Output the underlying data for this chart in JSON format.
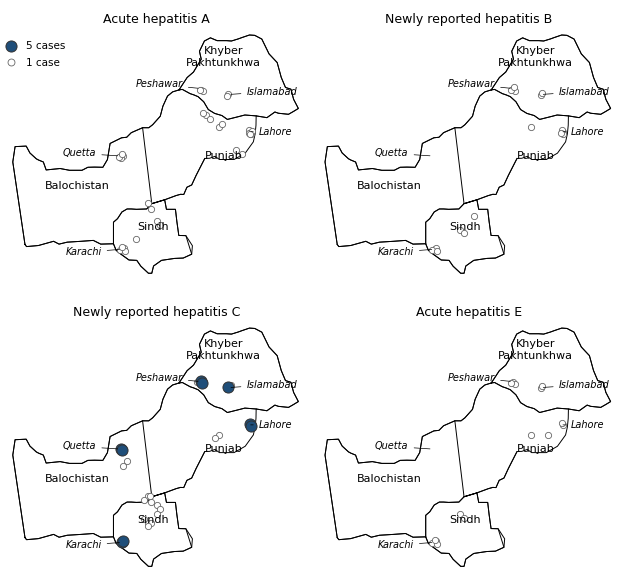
{
  "titles": [
    "Acute hepatitis A",
    "Newly reported hepatitis B",
    "Newly reported hepatitis C",
    "Acute hepatitis E"
  ],
  "legend_5cases_color": "#1f4e79",
  "legend_1case_color": "#ffffff",
  "legend_edge_color": "#666666",
  "xlim": [
    60.5,
    77.5
  ],
  "ylim": [
    23.2,
    37.5
  ],
  "cases_A_small": [
    [
      71.55,
      33.95
    ],
    [
      71.65,
      33.88
    ],
    [
      71.45,
      33.92
    ],
    [
      73.08,
      33.72
    ],
    [
      73.0,
      33.62
    ],
    [
      74.32,
      31.57
    ],
    [
      74.25,
      31.67
    ],
    [
      74.38,
      31.47
    ],
    [
      74.22,
      31.52
    ],
    [
      74.42,
      31.62
    ],
    [
      74.3,
      31.42
    ],
    [
      66.97,
      30.2
    ],
    [
      67.12,
      30.22
    ],
    [
      67.02,
      30.07
    ],
    [
      66.87,
      30.12
    ],
    [
      67.07,
      30.32
    ],
    [
      67.07,
      24.92
    ],
    [
      67.17,
      24.97
    ],
    [
      66.92,
      24.87
    ],
    [
      67.22,
      24.82
    ],
    [
      67.07,
      25.07
    ],
    [
      71.82,
      32.52
    ],
    [
      72.02,
      32.32
    ],
    [
      71.62,
      32.62
    ],
    [
      72.52,
      31.82
    ],
    [
      72.72,
      32.02
    ],
    [
      73.52,
      30.52
    ],
    [
      73.82,
      30.32
    ],
    [
      69.02,
      26.52
    ],
    [
      69.22,
      26.32
    ],
    [
      68.52,
      27.52
    ],
    [
      68.72,
      27.22
    ],
    [
      67.82,
      25.52
    ]
  ],
  "cases_A_large": [],
  "cases_B_small": [
    [
      71.52,
      34.02
    ],
    [
      71.62,
      33.87
    ],
    [
      71.42,
      33.92
    ],
    [
      71.57,
      34.12
    ],
    [
      73.07,
      33.67
    ],
    [
      73.17,
      33.77
    ],
    [
      74.32,
      31.57
    ],
    [
      74.27,
      31.67
    ],
    [
      74.37,
      31.47
    ],
    [
      74.22,
      31.52
    ],
    [
      67.07,
      24.92
    ],
    [
      67.17,
      24.97
    ],
    [
      66.92,
      24.87
    ],
    [
      67.22,
      24.82
    ],
    [
      72.52,
      31.82
    ],
    [
      68.52,
      26.02
    ],
    [
      68.72,
      25.82
    ],
    [
      69.32,
      26.82
    ]
  ],
  "cases_B_large": [],
  "cases_C_small": [
    [
      71.52,
      34.02
    ],
    [
      71.62,
      33.87
    ],
    [
      71.42,
      33.92
    ],
    [
      71.32,
      34.02
    ],
    [
      73.12,
      33.72
    ],
    [
      73.02,
      33.62
    ],
    [
      73.22,
      33.82
    ],
    [
      74.32,
      31.57
    ],
    [
      74.27,
      31.67
    ],
    [
      74.37,
      31.47
    ],
    [
      68.52,
      27.52
    ],
    [
      68.32,
      27.32
    ],
    [
      68.72,
      27.22
    ],
    [
      68.62,
      27.52
    ],
    [
      68.52,
      26.02
    ],
    [
      68.32,
      26.22
    ],
    [
      68.72,
      26.02
    ],
    [
      68.52,
      25.82
    ],
    [
      67.07,
      24.92
    ],
    [
      67.17,
      24.97
    ],
    [
      66.92,
      24.87
    ],
    [
      69.02,
      27.02
    ],
    [
      69.22,
      26.82
    ],
    [
      69.02,
      26.52
    ],
    [
      72.52,
      31.02
    ],
    [
      72.32,
      30.82
    ],
    [
      67.32,
      29.52
    ],
    [
      67.12,
      29.22
    ]
  ],
  "cases_C_large": [
    [
      71.5,
      34.04
    ],
    [
      71.57,
      33.94
    ],
    [
      73.07,
      33.7
    ],
    [
      74.3,
      31.6
    ],
    [
      74.34,
      31.5
    ],
    [
      67.07,
      24.92
    ],
    [
      67.12,
      24.97
    ],
    [
      66.97,
      30.2
    ],
    [
      67.07,
      30.12
    ]
  ],
  "cases_E_small": [
    [
      71.52,
      34.02
    ],
    [
      71.62,
      33.87
    ],
    [
      71.42,
      33.92
    ],
    [
      73.07,
      33.67
    ],
    [
      73.17,
      33.77
    ],
    [
      74.32,
      31.57
    ],
    [
      74.27,
      31.67
    ],
    [
      67.07,
      24.92
    ],
    [
      67.17,
      24.97
    ],
    [
      66.92,
      24.87
    ],
    [
      67.22,
      24.82
    ],
    [
      67.07,
      25.07
    ],
    [
      72.52,
      31.02
    ],
    [
      68.52,
      26.52
    ],
    [
      68.72,
      26.32
    ],
    [
      73.52,
      31.02
    ]
  ],
  "cases_E_large": []
}
